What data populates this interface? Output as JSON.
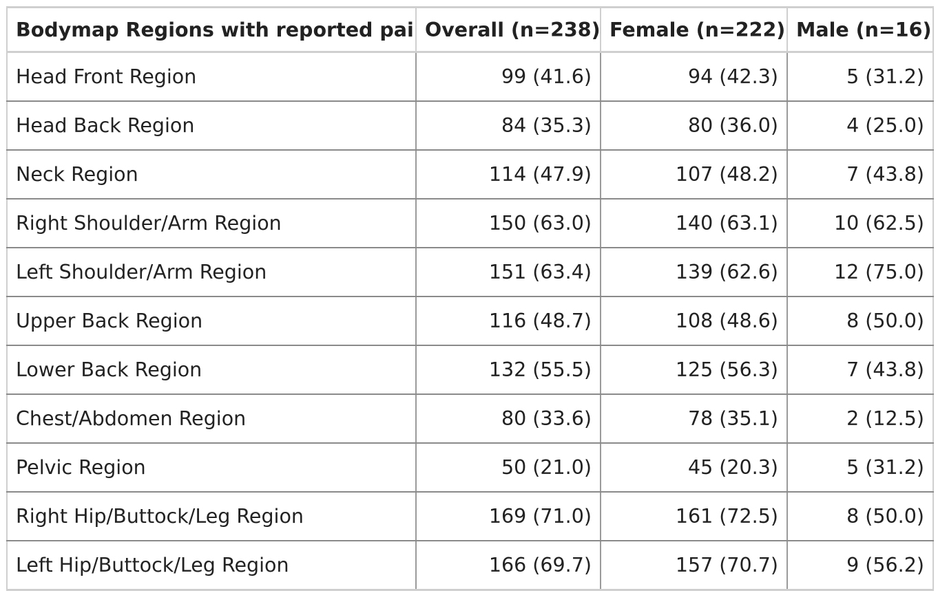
{
  "table": {
    "headers": [
      "Bodymap Regions with reported pain",
      "Overall (n=238)",
      "Female (n=222)",
      "Male (n=16)"
    ],
    "rows": [
      [
        "Head Front Region",
        "99 (41.6)",
        "94 (42.3)",
        "5 (31.2)"
      ],
      [
        "Head Back Region",
        "84 (35.3)",
        "80 (36.0)",
        "4 (25.0)"
      ],
      [
        "Neck Region",
        "114 (47.9)",
        "107 (48.2)",
        "7 (43.8)"
      ],
      [
        "Right Shoulder/Arm Region",
        "150 (63.0)",
        "140 (63.1)",
        "10 (62.5)"
      ],
      [
        "Left Shoulder/Arm Region",
        "151 (63.4)",
        "139 (62.6)",
        "12 (75.0)"
      ],
      [
        "Upper Back Region",
        "116 (48.7)",
        "108 (48.6)",
        "8 (50.0)"
      ],
      [
        "Lower Back Region",
        "132 (55.5)",
        "125 (56.3)",
        "7 (43.8)"
      ],
      [
        "Chest/Abdomen Region",
        "80 (33.6)",
        "78 (35.1)",
        "2 (12.5)"
      ],
      [
        "Pelvic Region",
        "50 (21.0)",
        "45 (20.3)",
        "5 (31.2)"
      ],
      [
        "Right Hip/Buttock/Leg Region",
        "169 (71.0)",
        "161 (72.5)",
        "8 (50.0)"
      ],
      [
        "Left Hip/Buttock/Leg Region",
        "166 (69.7)",
        "157 (70.7)",
        "9 (56.2)"
      ]
    ]
  }
}
